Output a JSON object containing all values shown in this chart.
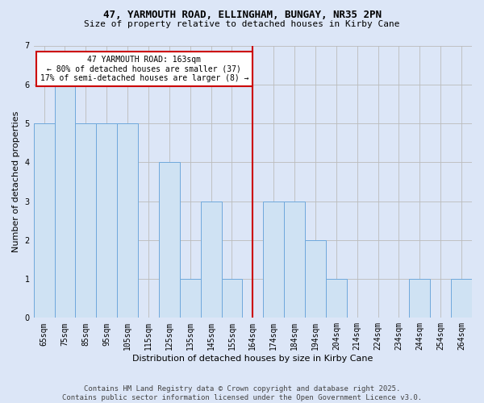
{
  "title_line1": "47, YARMOUTH ROAD, ELLINGHAM, BUNGAY, NR35 2PN",
  "title_line2": "Size of property relative to detached houses in Kirby Cane",
  "xlabel": "Distribution of detached houses by size in Kirby Cane",
  "ylabel": "Number of detached properties",
  "categories": [
    "65sqm",
    "75sqm",
    "85sqm",
    "95sqm",
    "105sqm",
    "115sqm",
    "125sqm",
    "135sqm",
    "145sqm",
    "155sqm",
    "164sqm",
    "174sqm",
    "184sqm",
    "194sqm",
    "204sqm",
    "214sqm",
    "224sqm",
    "234sqm",
    "244sqm",
    "254sqm",
    "264sqm"
  ],
  "values": [
    5,
    6,
    5,
    5,
    5,
    0,
    4,
    1,
    3,
    1,
    0,
    3,
    3,
    2,
    1,
    0,
    0,
    0,
    1,
    0,
    1
  ],
  "bar_color": "#cfe2f3",
  "bar_edge_color": "#6fa8dc",
  "reference_line_index": 10,
  "reference_line_color": "#cc0000",
  "annotation_text": "47 YARMOUTH ROAD: 163sqm\n← 80% of detached houses are smaller (37)\n17% of semi-detached houses are larger (8) →",
  "annotation_box_facecolor": "#ffffff",
  "annotation_box_edgecolor": "#cc0000",
  "ylim": [
    0,
    7
  ],
  "yticks": [
    0,
    1,
    2,
    3,
    4,
    5,
    6,
    7
  ],
  "grid_color": "#bbbbbb",
  "bg_color": "#dce6f7",
  "title1_fontsize": 9,
  "title2_fontsize": 8,
  "xlabel_fontsize": 8,
  "ylabel_fontsize": 8,
  "tick_fontsize": 7,
  "annot_fontsize": 7,
  "footer_text": "Contains HM Land Registry data © Crown copyright and database right 2025.\nContains public sector information licensed under the Open Government Licence v3.0.",
  "footer_fontsize": 6.5
}
